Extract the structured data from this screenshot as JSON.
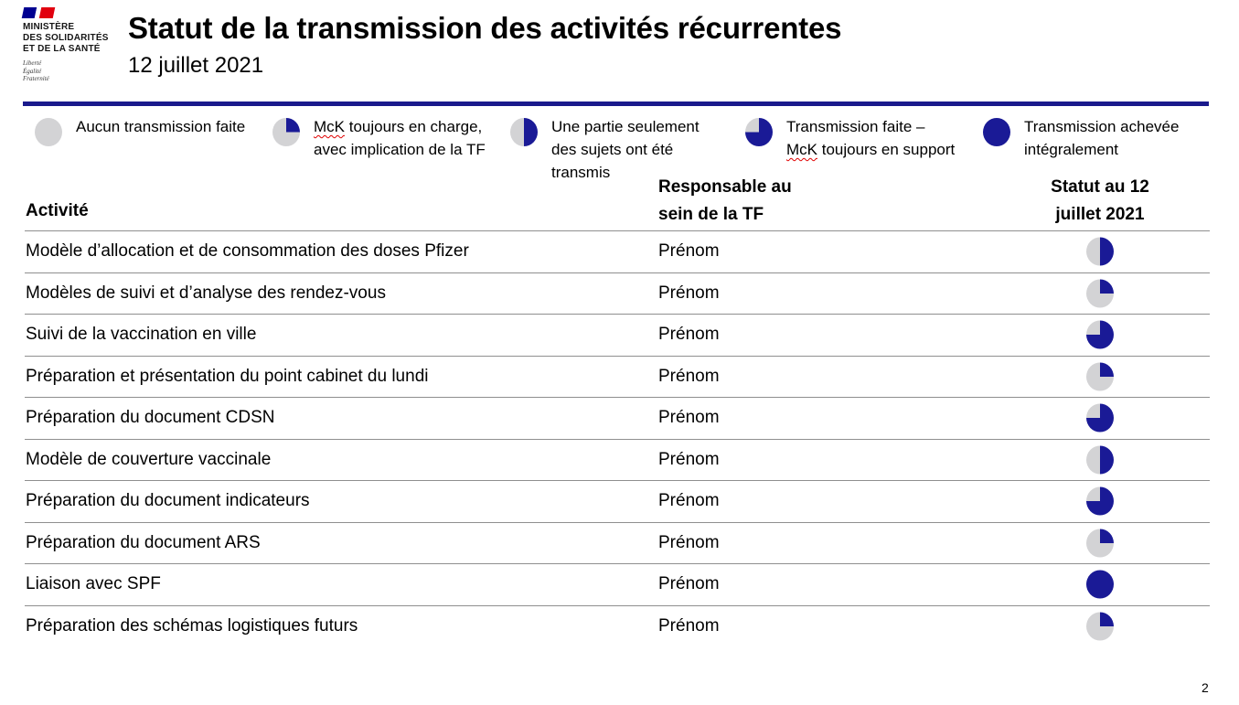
{
  "header": {
    "logo": {
      "ministry_lines": [
        "MINISTÈRE",
        "DES SOLIDARITÉS",
        "ET DE LA SANTÉ"
      ],
      "motto_lines": [
        "Liberté",
        "Égalité",
        "Fraternité"
      ]
    },
    "title": "Statut de la transmission des activités récurrentes",
    "subtitle": "12 juillet 2021"
  },
  "colors": {
    "navy_ball": "#1A1A96",
    "gray_ball": "#D3D3D5",
    "rule_navy": "#1A1A8C",
    "row_line": "#8F8F8F",
    "squiggle_red": "#E00000"
  },
  "legend": {
    "misspelled_word": "McK",
    "items": [
      {
        "quarters": 0,
        "lines": [
          "Aucun transmission faite"
        ]
      },
      {
        "quarters": 1,
        "lines": [
          "McK toujours en charge,",
          "avec implication de la TF"
        ]
      },
      {
        "quarters": 2,
        "lines": [
          "Une partie seulement",
          "des sujets ont été",
          "transmis"
        ]
      },
      {
        "quarters": 3,
        "lines": [
          "Transmission faite –",
          "McK toujours en support"
        ]
      },
      {
        "quarters": 4,
        "lines": [
          "Transmission achevée",
          "intégralement"
        ]
      }
    ]
  },
  "table": {
    "columns": {
      "activity": "Activité",
      "responsable_lines": [
        "Responsable au",
        "sein de la TF"
      ],
      "status_lines": [
        "Statut au 12",
        "juillet 2021"
      ]
    },
    "rows": [
      {
        "activity": "Modèle d’allocation et de consommation des doses Pfizer",
        "responsable": "Prénom",
        "status_quarters": 2
      },
      {
        "activity": "Modèles de suivi et d’analyse des rendez-vous",
        "responsable": "Prénom",
        "status_quarters": 1
      },
      {
        "activity": "Suivi de la vaccination en ville",
        "responsable": "Prénom",
        "status_quarters": 3
      },
      {
        "activity": "Préparation et présentation du point cabinet du lundi",
        "responsable": "Prénom",
        "status_quarters": 1
      },
      {
        "activity": "Préparation du document CDSN",
        "responsable": "Prénom",
        "status_quarters": 3
      },
      {
        "activity": "Modèle de couverture vaccinale",
        "responsable": "Prénom",
        "status_quarters": 2
      },
      {
        "activity": "Préparation du document indicateurs",
        "responsable": "Prénom",
        "status_quarters": 3
      },
      {
        "activity": "Préparation du document ARS",
        "responsable": "Prénom",
        "status_quarters": 1
      },
      {
        "activity": "Liaison avec SPF",
        "responsable": "Prénom",
        "status_quarters": 4
      },
      {
        "activity": "Préparation des schémas logistiques futurs",
        "responsable": "Prénom",
        "status_quarters": 1
      }
    ]
  },
  "footer": {
    "page_number": "2"
  }
}
